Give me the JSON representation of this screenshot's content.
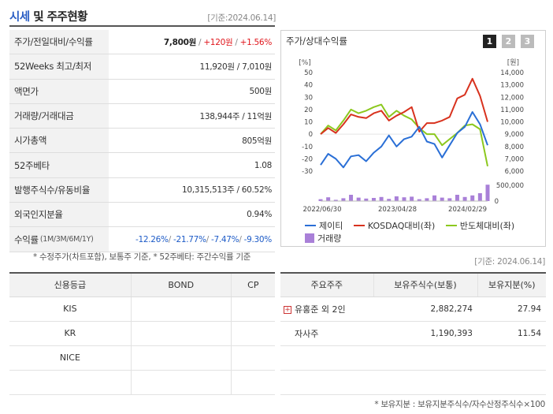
{
  "header": {
    "title_accent": "시세",
    "title_rest": "및 주주현황",
    "date": "[기준:2024.06.14]"
  },
  "info": {
    "rows": [
      {
        "label": "주가/전일대비/수익률",
        "value_main": "7,800원",
        "sep1": " / ",
        "value_change": "+120원",
        "sep2": " / ",
        "value_rate": "+1.56%"
      },
      {
        "label": "52Weeks 최고/최저",
        "value": "11,920원 / 7,010원"
      },
      {
        "label": "액면가",
        "value": "500원"
      },
      {
        "label": "거래량/거래대금",
        "value": "138,944주 / 11억원"
      },
      {
        "label": "시가총액",
        "value": "805억원"
      },
      {
        "label": "52주베타",
        "value": "1.08"
      },
      {
        "label": "발행주식수/유동비율",
        "value": "10,315,513주 / 60.52%"
      },
      {
        "label": "외국인지분율",
        "value": "0.94%"
      },
      {
        "label": "수익률",
        "label_sub": "(1M/3M/6M/1Y)",
        "value_1m": "-12.26%",
        "value_3m": "-21.77%",
        "value_6m": "-7.47%",
        "value_1y": "-9.30%",
        "sep": "/ "
      }
    ],
    "footnote": "* 수정주가(차트포함), 보통주 기준, * 52주베타: 주간수익률 기준"
  },
  "chart_panel": {
    "title": "주가/상대수익률",
    "tabs": [
      "1",
      "2",
      "3"
    ],
    "active_tab": 0,
    "colors": {
      "active_tab": "#222222",
      "inactive_tab": "#bbbbbb"
    }
  },
  "chart_data": {
    "type": "line",
    "left_axis_unit": "[%]",
    "right_axis_unit": "[원]",
    "left_ylim": [
      -30,
      50
    ],
    "left_ticks": [
      50,
      40,
      30,
      20,
      10,
      0,
      -10,
      -20,
      -30
    ],
    "right_ylim": [
      6000,
      14000
    ],
    "right_ticks": [
      "14,000",
      "13,000",
      "12,000",
      "11,000",
      "10,000",
      "9,000",
      "8,000",
      "7,000",
      "6,000"
    ],
    "volume_ticks": [
      "500,000",
      "0"
    ],
    "x_tick_labels": [
      "2022/06/30",
      "2023/04/28",
      "2024/02/29"
    ],
    "series": [
      {
        "name": "제이티",
        "color": "#2a6fd6",
        "values": [
          -25,
          -16,
          -20,
          -27,
          -18,
          -17,
          -22,
          -15,
          -10,
          -1,
          -10,
          -4,
          -2,
          6,
          -6,
          -8,
          -19,
          -9,
          1,
          6,
          18,
          8,
          -9
        ]
      },
      {
        "name": "KOSDAQ대비(좌)",
        "color": "#d8321e",
        "values": [
          0,
          5,
          1,
          8,
          16,
          14,
          13,
          17,
          19,
          11,
          15,
          18,
          22,
          2,
          9,
          9,
          11,
          14,
          29,
          32,
          45,
          31,
          10
        ]
      },
      {
        "name": "반도체대비(좌)",
        "color": "#8cc81e",
        "values": [
          0,
          7,
          3,
          11,
          20,
          17,
          19,
          22,
          24,
          14,
          19,
          15,
          12,
          5,
          0,
          0,
          -9,
          -4,
          1,
          7,
          8,
          4,
          -26
        ]
      },
      {
        "name": "거래량",
        "color": "#a980d8",
        "type": "bar",
        "values": [
          60000,
          120000,
          40000,
          90000,
          200000,
          110000,
          80000,
          100000,
          130000,
          70000,
          150000,
          120000,
          140000,
          60000,
          90000,
          180000,
          110000,
          90000,
          200000,
          130000,
          180000,
          250000,
          520000
        ]
      }
    ]
  },
  "credit": {
    "headers": [
      "신용등급",
      "BOND",
      "CP"
    ],
    "rows": [
      [
        "KIS",
        "",
        ""
      ],
      [
        "KR",
        "",
        ""
      ],
      [
        "NICE",
        "",
        ""
      ],
      [
        "",
        "",
        ""
      ]
    ]
  },
  "holders": {
    "headers": [
      "주요주주",
      "보유주식수(보통)",
      "보유지분(%)"
    ],
    "rows": [
      {
        "name": "유홍준 외 2인",
        "shares": "2,882,274",
        "pct": "27.94",
        "expandable": true
      },
      {
        "name": "자사주",
        "shares": "1,190,393",
        "pct": "11.54",
        "expandable": false
      },
      {
        "name": "",
        "shares": "",
        "pct": ""
      },
      {
        "name": "",
        "shares": "",
        "pct": ""
      }
    ],
    "footnote": "* 보유지분 : 보유지분주식수/자수산정주식수×100"
  },
  "bottom_date": "[기준: 2024.06.14]"
}
